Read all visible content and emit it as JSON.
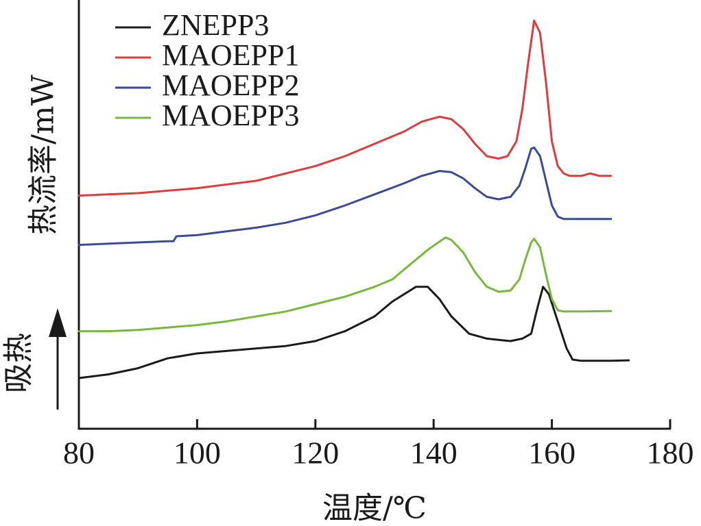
{
  "chart_data": {
    "type": "line",
    "title": "",
    "xlabel": "温度/℃",
    "ylabel": "热流率/mW",
    "endotherm_label": "吸热",
    "xlim": [
      80,
      180
    ],
    "x_ticks": [
      80,
      100,
      120,
      140,
      160,
      180
    ],
    "x_tick_labels": [
      "80",
      "100",
      "120",
      "140",
      "160",
      "180"
    ],
    "y_ticks_shown": false,
    "grid": false,
    "legend_position": "top-left",
    "series": [
      {
        "name": "ZNEPP3",
        "color": "#1a1a1a",
        "points": [
          [
            80,
            0.1
          ],
          [
            85,
            0.115
          ],
          [
            90,
            0.14
          ],
          [
            95,
            0.18
          ],
          [
            100,
            0.2
          ],
          [
            105,
            0.21
          ],
          [
            110,
            0.22
          ],
          [
            115,
            0.23
          ],
          [
            120,
            0.25
          ],
          [
            125,
            0.29
          ],
          [
            130,
            0.35
          ],
          [
            133,
            0.41
          ],
          [
            135,
            0.44
          ],
          [
            137,
            0.47
          ],
          [
            139,
            0.47
          ],
          [
            141,
            0.42
          ],
          [
            143,
            0.35
          ],
          [
            146,
            0.28
          ],
          [
            149,
            0.26
          ],
          [
            151,
            0.255
          ],
          [
            153,
            0.25
          ],
          [
            155,
            0.26
          ],
          [
            156.5,
            0.28
          ],
          [
            157.5,
            0.38
          ],
          [
            158.5,
            0.47
          ],
          [
            159.5,
            0.44
          ],
          [
            161,
            0.33
          ],
          [
            162.5,
            0.22
          ],
          [
            163.5,
            0.175
          ],
          [
            165,
            0.17
          ],
          [
            168,
            0.17
          ],
          [
            170,
            0.17
          ],
          [
            173,
            0.172
          ]
        ]
      },
      {
        "name": "MAOEPP1",
        "color": "#e03a3a",
        "points": [
          [
            80,
            0.84
          ],
          [
            85,
            0.845
          ],
          [
            90,
            0.85
          ],
          [
            95,
            0.86
          ],
          [
            100,
            0.87
          ],
          [
            105,
            0.885
          ],
          [
            110,
            0.9
          ],
          [
            115,
            0.93
          ],
          [
            120,
            0.96
          ],
          [
            125,
            1.0
          ],
          [
            130,
            1.05
          ],
          [
            135,
            1.1
          ],
          [
            138,
            1.14
          ],
          [
            141,
            1.16
          ],
          [
            143,
            1.15
          ],
          [
            145,
            1.11
          ],
          [
            147,
            1.05
          ],
          [
            149,
            1.0
          ],
          [
            151,
            0.99
          ],
          [
            152.5,
            1.0
          ],
          [
            154,
            1.06
          ],
          [
            155,
            1.19
          ],
          [
            156,
            1.38
          ],
          [
            157,
            1.55
          ],
          [
            158,
            1.5
          ],
          [
            159,
            1.3
          ],
          [
            160,
            1.06
          ],
          [
            161,
            0.96
          ],
          [
            162,
            0.93
          ],
          [
            163,
            0.92
          ],
          [
            165,
            0.92
          ],
          [
            166.5,
            0.93
          ],
          [
            168,
            0.92
          ],
          [
            170,
            0.92
          ]
        ]
      },
      {
        "name": "MAOEPP2",
        "color": "#3a4a9a",
        "points": [
          [
            80,
            0.64
          ],
          [
            85,
            0.645
          ],
          [
            90,
            0.65
          ],
          [
            95,
            0.655
          ],
          [
            96,
            0.655
          ],
          [
            96.5,
            0.675
          ],
          [
            100,
            0.68
          ],
          [
            105,
            0.695
          ],
          [
            110,
            0.71
          ],
          [
            115,
            0.73
          ],
          [
            120,
            0.76
          ],
          [
            125,
            0.8
          ],
          [
            130,
            0.845
          ],
          [
            135,
            0.89
          ],
          [
            138,
            0.92
          ],
          [
            141,
            0.94
          ],
          [
            143,
            0.935
          ],
          [
            145,
            0.91
          ],
          [
            147,
            0.87
          ],
          [
            149,
            0.835
          ],
          [
            151,
            0.825
          ],
          [
            153,
            0.835
          ],
          [
            154.5,
            0.88
          ],
          [
            155.5,
            0.95
          ],
          [
            156.5,
            1.03
          ],
          [
            157,
            1.035
          ],
          [
            158,
            1.0
          ],
          [
            159,
            0.9
          ],
          [
            160,
            0.8
          ],
          [
            161,
            0.755
          ],
          [
            162,
            0.745
          ],
          [
            165,
            0.745
          ],
          [
            170,
            0.745
          ]
        ]
      },
      {
        "name": "MAOEPP3",
        "color": "#76b83a",
        "points": [
          [
            80,
            0.29
          ],
          [
            85,
            0.29
          ],
          [
            90,
            0.295
          ],
          [
            95,
            0.305
          ],
          [
            100,
            0.315
          ],
          [
            105,
            0.33
          ],
          [
            110,
            0.35
          ],
          [
            115,
            0.37
          ],
          [
            120,
            0.4
          ],
          [
            125,
            0.43
          ],
          [
            130,
            0.47
          ],
          [
            133,
            0.5
          ],
          [
            136,
            0.56
          ],
          [
            139,
            0.62
          ],
          [
            142,
            0.67
          ],
          [
            143,
            0.66
          ],
          [
            145,
            0.61
          ],
          [
            147,
            0.53
          ],
          [
            149,
            0.47
          ],
          [
            151,
            0.45
          ],
          [
            153,
            0.455
          ],
          [
            154.5,
            0.5
          ],
          [
            155.5,
            0.58
          ],
          [
            156.5,
            0.65
          ],
          [
            157,
            0.665
          ],
          [
            158,
            0.63
          ],
          [
            159,
            0.52
          ],
          [
            160,
            0.42
          ],
          [
            161,
            0.375
          ],
          [
            162,
            0.37
          ],
          [
            165,
            0.37
          ],
          [
            170,
            0.372
          ]
        ]
      }
    ]
  }
}
